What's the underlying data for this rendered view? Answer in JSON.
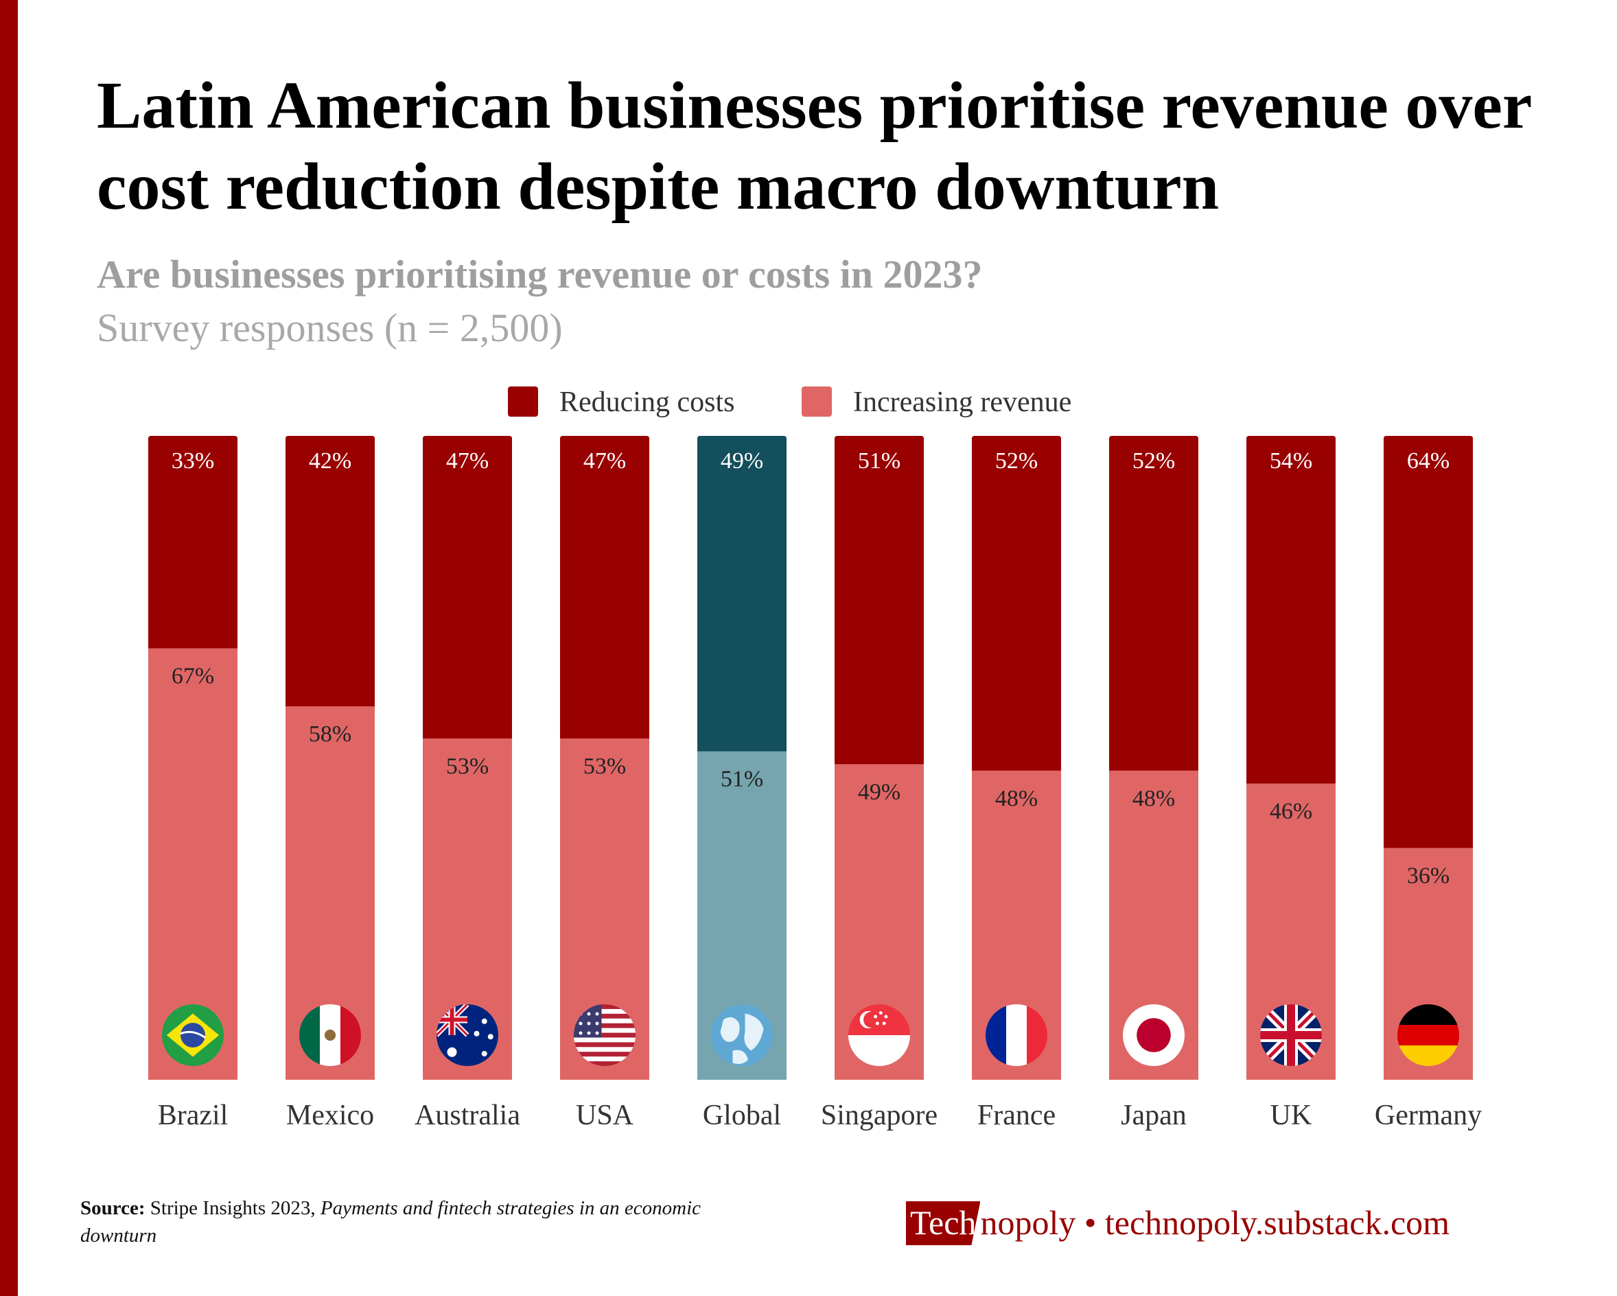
{
  "header": {
    "title": "Latin American businesses prioritise revenue over cost reduction despite macro downturn",
    "subtitle": "Are businesses prioritising revenue or costs in 2023?",
    "note": "Survey responses (n = 2,500)"
  },
  "colors": {
    "reducing": "#990000",
    "increasing": "#e06666",
    "global_reducing": "#134f5c",
    "global_increasing": "#76a5af",
    "accent": "#990000"
  },
  "chart_data": {
    "type": "bar",
    "stacked": true,
    "categories": [
      "Brazil",
      "Mexico",
      "Australia",
      "USA",
      "Global",
      "Singapore",
      "France",
      "Japan",
      "UK",
      "Germany"
    ],
    "flag_icons": [
      "brazil-flag-icon",
      "mexico-flag-icon",
      "australia-flag-icon",
      "usa-flag-icon",
      "globe-icon",
      "singapore-flag-icon",
      "france-flag-icon",
      "japan-flag-icon",
      "uk-flag-icon",
      "germany-flag-icon"
    ],
    "highlight_category": "Global",
    "series": [
      {
        "name": "Reducing costs",
        "values": [
          33,
          42,
          47,
          47,
          49,
          51,
          52,
          52,
          54,
          64
        ],
        "labels": [
          "33%",
          "42%",
          "47%",
          "47%",
          "49%",
          "51%",
          "52%",
          "52%",
          "54%",
          "64%"
        ]
      },
      {
        "name": "Increasing revenue",
        "values": [
          67,
          58,
          53,
          53,
          51,
          49,
          48,
          48,
          46,
          36
        ],
        "labels": [
          "67%",
          "58%",
          "53%",
          "53%",
          "51%",
          "49%",
          "48%",
          "48%",
          "46%",
          "36%"
        ]
      }
    ],
    "legend_position": "top-center",
    "grid": false
  },
  "footer": {
    "source_label": "Source:",
    "source_text": "Stripe Insights 2023,",
    "source_title": "Payments and fintech strategies in an economic downturn",
    "brand_box": "Tech",
    "brand_rest": "nopoly",
    "brand_sep": "•",
    "brand_url": "technopoly.substack.com"
  }
}
